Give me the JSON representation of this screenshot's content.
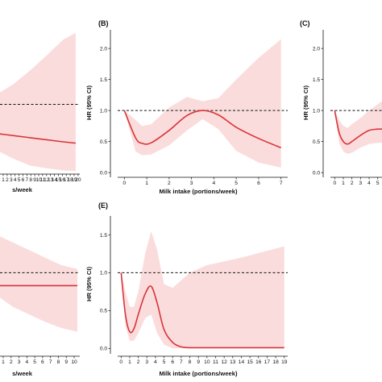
{
  "chart_data": [
    {
      "panel": "",
      "type": "line",
      "xlabel": "s/week",
      "ylabel": "",
      "x_ticks": [
        "1",
        "2",
        "3",
        "4",
        "5",
        "6",
        "7",
        "8",
        "9",
        "10",
        "11",
        "12",
        "13",
        "14",
        "15",
        "16",
        "17",
        "18",
        "19",
        "20"
      ],
      "y_ticks": [],
      "xlim": [
        -0.5,
        20
      ],
      "ylim": [
        0,
        2.2
      ],
      "reference_line": 1.0,
      "series": [
        {
          "x": [
            0,
            4,
            8,
            12,
            16,
            19
          ],
          "y": [
            0.57,
            0.54,
            0.51,
            0.48,
            0.45,
            0.43
          ]
        }
      ],
      "ci_upper": [
        {
          "x": [
            0,
            4,
            8,
            12,
            16,
            19
          ],
          "y": [
            1.15,
            1.3,
            1.5,
            1.72,
            1.95,
            2.05
          ]
        }
      ],
      "ci_lower": [
        {
          "x": [
            0,
            4,
            8,
            12,
            16,
            19
          ],
          "y": [
            0.32,
            0.2,
            0.1,
            0.06,
            0.03,
            0.02
          ]
        }
      ]
    },
    {
      "panel": "(B)",
      "type": "line",
      "xlabel": "Milk intake (portions/week)",
      "ylabel": "HR (95% CI)",
      "x_ticks": [
        "0",
        "1",
        "2",
        "3",
        "4",
        "5",
        "6",
        "7"
      ],
      "y_ticks": [
        "0.0",
        "0.5",
        "1.0",
        "1.5",
        "2.0"
      ],
      "xlim": [
        -0.3,
        7.3
      ],
      "ylim": [
        -0.05,
        2.3
      ],
      "reference_line": 1.0,
      "series": [
        {
          "x": [
            0,
            0.5,
            0.8,
            1.2,
            2,
            2.8,
            3.5,
            4.2,
            5,
            6,
            7
          ],
          "y": [
            1.0,
            0.56,
            0.47,
            0.48,
            0.68,
            0.92,
            1.0,
            0.93,
            0.73,
            0.55,
            0.4
          ]
        }
      ],
      "ci_upper": [
        {
          "x": [
            0,
            0.5,
            0.8,
            1.2,
            2,
            2.8,
            3.5,
            4.2,
            5,
            6,
            7
          ],
          "y": [
            1.0,
            0.85,
            0.75,
            0.78,
            1.05,
            1.22,
            1.15,
            1.2,
            1.5,
            1.85,
            2.15
          ]
        }
      ],
      "ci_lower": [
        {
          "x": [
            0,
            0.5,
            0.8,
            1.2,
            2,
            2.8,
            3.5,
            4.2,
            5,
            6,
            7
          ],
          "y": [
            1.0,
            0.34,
            0.28,
            0.29,
            0.44,
            0.68,
            0.86,
            0.7,
            0.35,
            0.16,
            0.08
          ]
        }
      ]
    },
    {
      "panel": "(C)",
      "type": "line",
      "xlabel": "",
      "ylabel": "HR (95% CI)",
      "x_ticks": [
        "0",
        "1",
        "2",
        "3",
        "4",
        "5"
      ],
      "y_ticks": [
        "0.0",
        "0.5",
        "1.0",
        "1.5",
        "2.0"
      ],
      "xlim": [
        -0.5,
        5.5
      ],
      "ylim": [
        -0.05,
        2.3
      ],
      "reference_line": 1.0,
      "series": [
        {
          "x": [
            0,
            0.5,
            1,
            1.5,
            2,
            3,
            4,
            5,
            5.5
          ],
          "y": [
            1.0,
            0.65,
            0.5,
            0.46,
            0.5,
            0.6,
            0.68,
            0.7,
            0.7
          ]
        }
      ],
      "ci_upper": [
        {
          "x": [
            0,
            0.5,
            1,
            1.5,
            2,
            3,
            4,
            5,
            5.5
          ],
          "y": [
            1.0,
            0.85,
            0.75,
            0.72,
            0.78,
            0.88,
            1.0,
            1.1,
            1.15
          ]
        }
      ],
      "ci_lower": [
        {
          "x": [
            0,
            0.5,
            1,
            1.5,
            2,
            3,
            4,
            5,
            5.5
          ],
          "y": [
            1.0,
            0.48,
            0.34,
            0.3,
            0.32,
            0.4,
            0.46,
            0.48,
            0.48
          ]
        }
      ]
    },
    {
      "panel": "",
      "type": "line",
      "xlabel": "s/week",
      "ylabel": "",
      "x_ticks": [
        "1",
        "2",
        "3",
        "4",
        "5",
        "6",
        "7",
        "8",
        "9",
        "10"
      ],
      "y_ticks": [],
      "xlim": [
        -0.2,
        10.3
      ],
      "ylim": [
        -0.05,
        1.75
      ],
      "reference_line": 1.0,
      "series": [
        {
          "x": [
            0,
            2,
            4,
            6,
            8,
            10
          ],
          "y": [
            0.83,
            0.83,
            0.83,
            0.83,
            0.83,
            0.83
          ]
        }
      ],
      "ci_upper": [
        {
          "x": [
            0,
            2,
            4,
            6,
            8,
            10
          ],
          "y": [
            1.5,
            1.4,
            1.3,
            1.2,
            1.1,
            1.05
          ]
        }
      ],
      "ci_lower": [
        {
          "x": [
            0,
            2,
            4,
            6,
            8,
            10
          ],
          "y": [
            0.7,
            0.55,
            0.45,
            0.35,
            0.27,
            0.22
          ]
        }
      ]
    },
    {
      "panel": "(E)",
      "type": "line",
      "xlabel": "Milk intake (portions/week)",
      "ylabel": "HR (95% CI)",
      "x_ticks": [
        "0",
        "1",
        "2",
        "3",
        "4",
        "5",
        "6",
        "7",
        "8",
        "9",
        "10",
        "11",
        "12",
        "13",
        "14",
        "15",
        "16",
        "17",
        "18",
        "19"
      ],
      "y_ticks": [
        "0.0",
        "0.5",
        "1.0",
        "1.5"
      ],
      "xlim": [
        -0.4,
        19.4
      ],
      "ylim": [
        -0.05,
        1.75
      ],
      "reference_line": 1.0,
      "series": [
        {
          "x": [
            0,
            0.5,
            1,
            1.5,
            2,
            2.8,
            3.5,
            4.2,
            5,
            6,
            7,
            8,
            10,
            14,
            19
          ],
          "y": [
            1.0,
            0.45,
            0.22,
            0.26,
            0.45,
            0.72,
            0.82,
            0.6,
            0.25,
            0.08,
            0.02,
            0.01,
            0.01,
            0.01,
            0.01
          ]
        }
      ],
      "ci_upper": [
        {
          "x": [
            0,
            0.5,
            1,
            1.5,
            2,
            2.8,
            3.5,
            4.2,
            5,
            6,
            7,
            8,
            10,
            14,
            19
          ],
          "y": [
            1.0,
            0.75,
            0.55,
            0.55,
            0.75,
            1.25,
            1.55,
            1.3,
            0.85,
            0.8,
            0.9,
            1.0,
            1.1,
            1.2,
            1.35
          ]
        }
      ],
      "ci_lower": [
        {
          "x": [
            0,
            0.5,
            1,
            1.5,
            2,
            2.8,
            3.5,
            4.2,
            5,
            6,
            7,
            8,
            10,
            14,
            19
          ],
          "y": [
            1.0,
            0.3,
            0.1,
            0.1,
            0.2,
            0.4,
            0.45,
            0.2,
            0.05,
            0.0,
            0.0,
            0.0,
            0.0,
            0.0,
            0.0
          ]
        }
      ]
    }
  ]
}
